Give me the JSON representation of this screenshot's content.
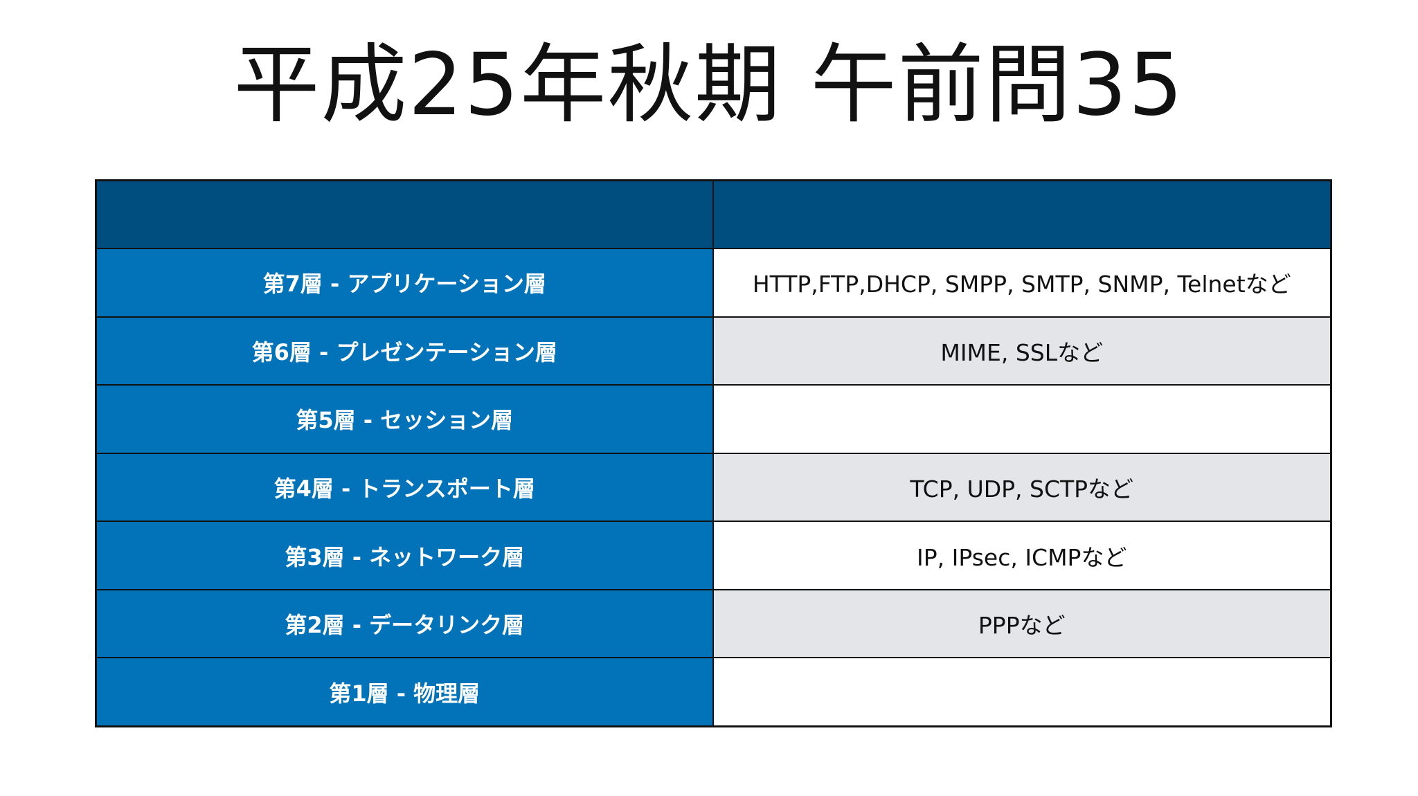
{
  "slide": {
    "title": "平成25年秋期 午前問35"
  },
  "table": {
    "header": {
      "col1": "",
      "col2": ""
    },
    "rows": [
      {
        "layer": "第7層 - アプリケーション層",
        "protocols": "HTTP,FTP,DHCP, SMPP, SMTP, SNMP, Telnetなど"
      },
      {
        "layer": "第6層 - プレゼンテーション層",
        "protocols": "MIME, SSLなど"
      },
      {
        "layer": "第5層 - セッション層",
        "protocols": ""
      },
      {
        "layer": "第4層 - トランスポート層",
        "protocols": "TCP, UDP, SCTPなど"
      },
      {
        "layer": "第3層 - ネットワーク層",
        "protocols": "IP, IPsec, ICMPなど"
      },
      {
        "layer": "第2層 - データリンク層",
        "protocols": "PPPなど"
      },
      {
        "layer": "第1層 - 物理層",
        "protocols": ""
      }
    ]
  },
  "colors": {
    "header_bg": "#004d80",
    "layer_bg": "#0272b9",
    "row_alt_bg": "#e4e5e8",
    "border": "#111111"
  }
}
